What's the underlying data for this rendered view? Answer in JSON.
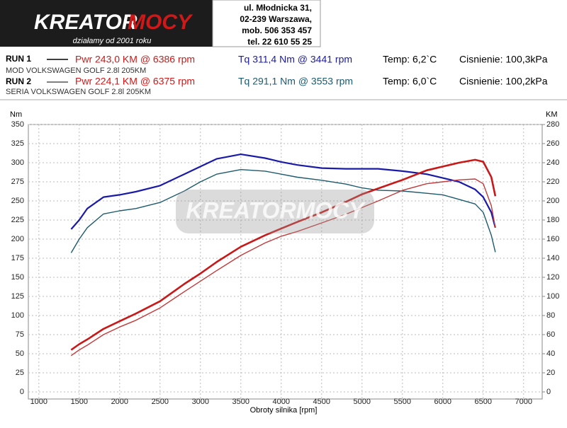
{
  "header": {
    "logo_word1": "KREATOR",
    "logo_word2": "MOCY",
    "slogan": "działamy od 2001 roku",
    "address": [
      "ul. Młodnicka 31,",
      "02-239  Warszawa,",
      "mob.  506 353 457",
      "tel.  22 610 55 25"
    ]
  },
  "runs": [
    {
      "label": "RUN 1",
      "power": "Pwr  243,0 KM @ 6386 rpm",
      "torque": "Tq 311,4 Nm @ 3441 rpm",
      "temp": "Temp: 6,2`C",
      "pressure": "Cisnienie: 100,3kPa",
      "description": "MOD VOLKSWAGEN GOLF 2.8l 205KM"
    },
    {
      "label": "RUN 2",
      "power": "Pwr  224,1 KM @ 6375 rpm",
      "torque": "Tq 291,1 Nm @ 3553 rpm",
      "temp": "Temp: 6,0`C",
      "pressure": "Cisnienie: 100,2kPa",
      "description": "SERIA VOLKSWAGEN GOLF 2.8l 205KM"
    }
  ],
  "watermark": "KREATORMOCY",
  "chart_data": {
    "type": "line",
    "y_label": "Nm",
    "y2_label": "KM",
    "x_label": "Obroty silnika [rpm]",
    "x": [
      1400,
      1500,
      1600,
      1800,
      2000,
      2200,
      2500,
      2800,
      3000,
      3200,
      3500,
      3800,
      4000,
      4200,
      4500,
      4800,
      5000,
      5200,
      5500,
      5800,
      6000,
      6200,
      6400,
      6500,
      6600,
      6650
    ],
    "series": [
      {
        "color": "#1a1aa8",
        "width": 2.2,
        "values": [
          213,
          225,
          240,
          255,
          258,
          262,
          270,
          285,
          295,
          305,
          311,
          306,
          301,
          297,
          293,
          292,
          292,
          292,
          289,
          285,
          280,
          275,
          265,
          255,
          235,
          215
        ]
      },
      {
        "color": "#1d5a6e",
        "width": 1.4,
        "values": [
          182,
          200,
          215,
          233,
          237,
          240,
          248,
          263,
          275,
          285,
          291,
          289,
          285,
          281,
          277,
          272,
          267,
          264,
          263,
          260,
          258,
          252,
          246,
          235,
          205,
          183
        ]
      },
      {
        "color": "#c81818",
        "width": 2.6,
        "axis": "y2",
        "values": [
          44,
          50,
          55,
          66,
          74,
          82,
          95,
          113,
          124,
          136,
          152,
          164,
          171,
          178,
          188,
          199,
          207,
          213,
          222,
          232,
          236,
          240,
          243,
          241,
          225,
          205
        ]
      },
      {
        "color": "#c23a3a",
        "width": 1.4,
        "axis": "y2",
        "values": [
          38,
          44,
          49,
          60,
          68,
          75,
          88,
          105,
          116,
          127,
          143,
          156,
          163,
          168,
          177,
          186,
          193,
          200,
          211,
          218,
          220,
          222,
          223,
          218,
          195,
          172
        ]
      }
    ],
    "xlim": [
      870,
      7230
    ],
    "xticks": [
      1000,
      1500,
      2000,
      2500,
      3000,
      3500,
      4000,
      4500,
      5000,
      5500,
      6000,
      6500,
      7000
    ],
    "ylim": [
      0,
      350
    ],
    "yticks": [
      0,
      25,
      50,
      75,
      100,
      125,
      150,
      175,
      200,
      225,
      250,
      275,
      300,
      325,
      350
    ],
    "y2lim": [
      0,
      280
    ],
    "y2ticks": [
      0,
      20,
      40,
      60,
      80,
      100,
      120,
      140,
      160,
      180,
      200,
      220,
      240,
      260,
      280
    ],
    "grid": true
  }
}
